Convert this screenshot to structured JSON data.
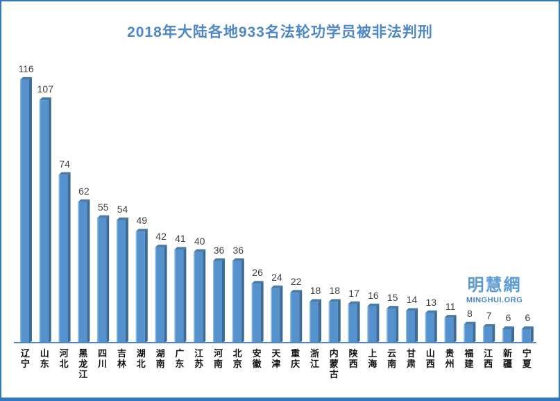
{
  "title": "2018年大陆各地933名法轮功学员被非法判刑",
  "watermark": {
    "name": "明慧網",
    "url": "MINGHUI.ORG"
  },
  "chart_data": {
    "type": "bar",
    "title": "2018年大陆各地933名法轮功学员被非法判刑",
    "total": 933,
    "categories": [
      "辽宁",
      "山东",
      "河北",
      "黑龙江",
      "四川",
      "吉林",
      "湖北",
      "湖南",
      "广东",
      "江苏",
      "河南",
      "北京",
      "安徽",
      "天津",
      "重庆",
      "浙江",
      "内蒙古",
      "陕西",
      "上海",
      "云南",
      "甘肃",
      "山西",
      "贵州",
      "福建",
      "江西",
      "新疆",
      "宁夏"
    ],
    "values": [
      116,
      107,
      74,
      62,
      55,
      54,
      49,
      42,
      41,
      40,
      36,
      36,
      26,
      24,
      22,
      18,
      18,
      17,
      16,
      15,
      14,
      13,
      11,
      8,
      7,
      6,
      6
    ],
    "xlabel": "",
    "ylabel": "",
    "ylim": [
      0,
      120
    ],
    "grid": false,
    "legend": false,
    "value_labels": true,
    "colors": {
      "bar_face": "#5592CD",
      "bar_side": "#3D6C96",
      "bar_top": "#4A7CA6",
      "bar_highlight": "#8ab8e2",
      "axis": "#4E86C4",
      "title_text": "#4E87C5",
      "value_text": "#3F3F3F",
      "frame": "#3078C0"
    }
  }
}
